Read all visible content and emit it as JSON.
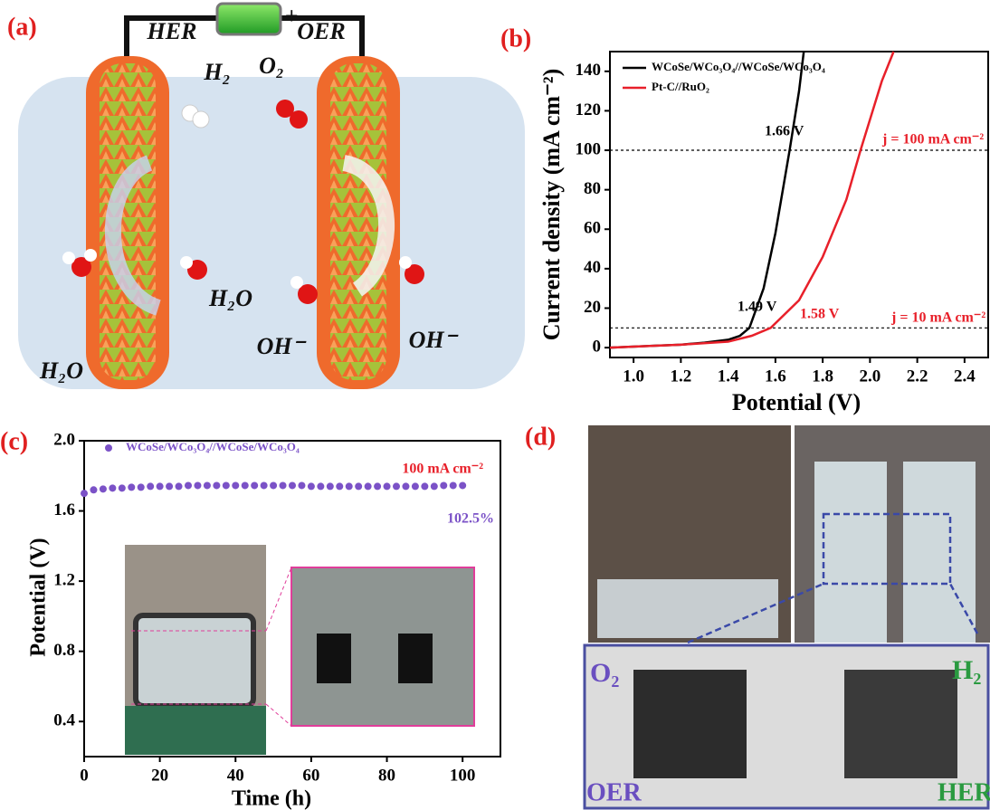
{
  "panel_labels": [
    "(a)",
    "(b)",
    "(c)",
    "(d)"
  ],
  "diagram": {
    "battery_minus": "−",
    "battery_plus": "+",
    "left_electrode": "HER",
    "right_electrode": "OER",
    "gas_left": "H₂",
    "gas_right": "O₂",
    "reactants_left": [
      "H₂O",
      "H₂O"
    ],
    "reactants_right": [
      "OH⁻",
      "OH⁻"
    ]
  },
  "chart_data": [
    {
      "type": "line",
      "xlabel": "Potential (V)",
      "ylabel": "Current density (mA cm⁻²)",
      "xlim": [
        0.9,
        2.5
      ],
      "ylim": [
        -5,
        150
      ],
      "xticks": [
        {
          "value": 1,
          "label": "1.0"
        },
        1.2,
        1.4,
        1.6,
        1.8,
        {
          "value": 2,
          "label": "2.0"
        },
        2.2,
        2.4
      ],
      "yticks": [
        0,
        20,
        40,
        60,
        80,
        100,
        120,
        140
      ],
      "series": [
        {
          "name": "WCoSe/WCo₃O₄//WCoSe/WCo₃O₄",
          "color": "#000000",
          "x": [
            0.9,
            1.0,
            1.1,
            1.2,
            1.3,
            1.4,
            1.45,
            1.49,
            1.55,
            1.6,
            1.66,
            1.7,
            1.72
          ],
          "values": [
            0,
            0.5,
            1,
            1.5,
            2.5,
            4,
            6,
            10,
            30,
            58,
            100,
            130,
            150
          ]
        },
        {
          "name": "Pt-C//RuO₂",
          "color": "#e8202a",
          "x": [
            0.9,
            1.0,
            1.2,
            1.4,
            1.5,
            1.58,
            1.7,
            1.8,
            1.9,
            1.96,
            2.05,
            2.1
          ],
          "values": [
            0,
            0.5,
            1.5,
            3,
            6,
            10,
            24,
            46,
            75,
            100,
            135,
            150
          ]
        }
      ],
      "reference_lines": [
        100,
        10
      ],
      "annotations": [
        "1.66 V",
        "1.49 V",
        "1.58 V",
        "j = 100 mA cm⁻²",
        "j = 10 mA cm⁻²"
      ],
      "legend": "upper left"
    },
    {
      "type": "scatter",
      "xlabel": "Time (h)",
      "ylabel": "Potential (V)",
      "xlim": [
        0,
        110
      ],
      "ylim": [
        0.2,
        2.0
      ],
      "xticks": [
        0,
        20,
        40,
        60,
        80,
        100
      ],
      "yticks": [
        0.4,
        0.8,
        1.2,
        1.6,
        {
          "value": 2,
          "label": "2.0"
        }
      ],
      "series": [
        {
          "name": "WCoSe/WCo₃O₄//WCoSe/WCo₃O₄",
          "color": "#7b52c7",
          "x": [
            0,
            2.5,
            5,
            7.5,
            10,
            12.5,
            15,
            17.5,
            20,
            22.5,
            25,
            27.5,
            30,
            32.5,
            35,
            37.5,
            40,
            42.5,
            45,
            47.5,
            50,
            52.5,
            55,
            57.5,
            60,
            62.5,
            65,
            67.5,
            70,
            72.5,
            75,
            77.5,
            80,
            82.5,
            85,
            87.5,
            90,
            92.5,
            95,
            97.5,
            100
          ],
          "values": [
            1.7,
            1.72,
            1.725,
            1.73,
            1.73,
            1.735,
            1.735,
            1.74,
            1.74,
            1.74,
            1.74,
            1.745,
            1.745,
            1.745,
            1.745,
            1.745,
            1.745,
            1.745,
            1.745,
            1.745,
            1.745,
            1.745,
            1.745,
            1.745,
            1.74,
            1.74,
            1.74,
            1.74,
            1.74,
            1.74,
            1.74,
            1.74,
            1.74,
            1.74,
            1.74,
            1.74,
            1.74,
            1.74,
            1.745,
            1.745,
            1.745
          ]
        }
      ],
      "annotations": [
        "100 mA cm⁻²",
        "102.5%"
      ],
      "legend": "upper left"
    }
  ],
  "photos": {
    "gas_left": "O₂",
    "gas_right": "H₂",
    "electrode_left": "OER",
    "electrode_right": "HER"
  }
}
